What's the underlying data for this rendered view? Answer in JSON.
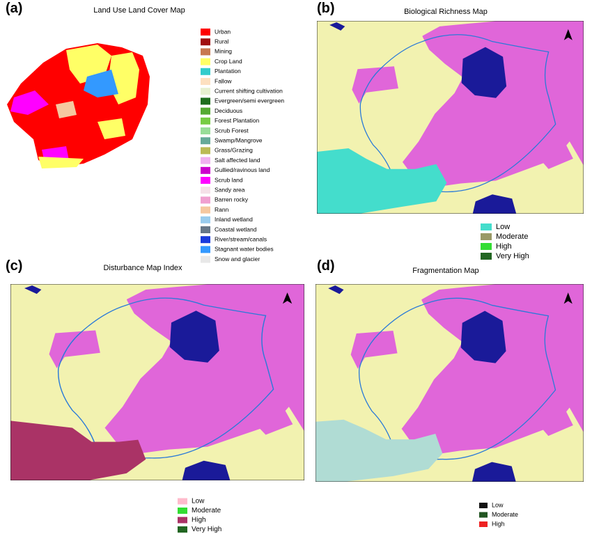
{
  "panels": [
    {
      "label": "(a)",
      "title": "Land Use Land Cover Map",
      "legend": [
        {
          "label": "Urban",
          "color": "#ff0000"
        },
        {
          "label": "Rural",
          "color": "#a01010"
        },
        {
          "label": "Mining",
          "color": "#c87850"
        },
        {
          "label": "Crop Land",
          "color": "#ffff66"
        },
        {
          "label": "Plantation",
          "color": "#33cccc"
        },
        {
          "label": "Fallow",
          "color": "#fde0c0"
        },
        {
          "label": "Current shifting cultivation",
          "color": "#e6f0d0"
        },
        {
          "label": "Evergreen/semi evergreen",
          "color": "#1e6e1e"
        },
        {
          "label": "Deciduous",
          "color": "#55aa33"
        },
        {
          "label": "Forest Plantation",
          "color": "#77cc44"
        },
        {
          "label": "Scrub Forest",
          "color": "#99dd99"
        },
        {
          "label": "Swamp/Mangrove",
          "color": "#66aa99"
        },
        {
          "label": "Grass/Grazing",
          "color": "#bbbb55"
        },
        {
          "label": "Salt affected land",
          "color": "#f0b0f0"
        },
        {
          "label": "Gullied/ravinous land",
          "color": "#cc00cc"
        },
        {
          "label": "Scrub land",
          "color": "#ff00ff"
        },
        {
          "label": "Sandy area",
          "color": "#f5e0e8"
        },
        {
          "label": "Barren rocky",
          "color": "#f0a0d0"
        },
        {
          "label": "Rann",
          "color": "#f5c8a0"
        },
        {
          "label": "Inland wetland",
          "color": "#99ccee"
        },
        {
          "label": "Coastal wetland",
          "color": "#667788"
        },
        {
          "label": "River/stream/canals",
          "color": "#1a3cdd"
        },
        {
          "label": "Stagnant water bodies",
          "color": "#3399ff"
        },
        {
          "label": "Snow and glacier",
          "color": "#e8e8e8"
        }
      ]
    },
    {
      "label": "(b)",
      "title": "Biological Richness Map",
      "legend": [
        {
          "label": "Low",
          "color": "#44ddcc"
        },
        {
          "label": "Moderate",
          "color": "#999966"
        },
        {
          "label": "High",
          "color": "#33dd33"
        },
        {
          "label": "Very High",
          "color": "#226622"
        }
      ]
    },
    {
      "label": "(c)",
      "title": "Disturbance Map Index",
      "legend": [
        {
          "label": "Low",
          "color": "#ffbbcc"
        },
        {
          "label": "Moderate",
          "color": "#33dd33"
        },
        {
          "label": "High",
          "color": "#aa3366"
        },
        {
          "label": "Very High",
          "color": "#226622"
        }
      ]
    },
    {
      "label": "(d)",
      "title": "Fragmentation Map",
      "legend": [
        {
          "label": "Low",
          "color": "#111111"
        },
        {
          "label": "Moderate",
          "color": "#225522"
        },
        {
          "label": "High",
          "color": "#ee2222"
        }
      ]
    }
  ]
}
